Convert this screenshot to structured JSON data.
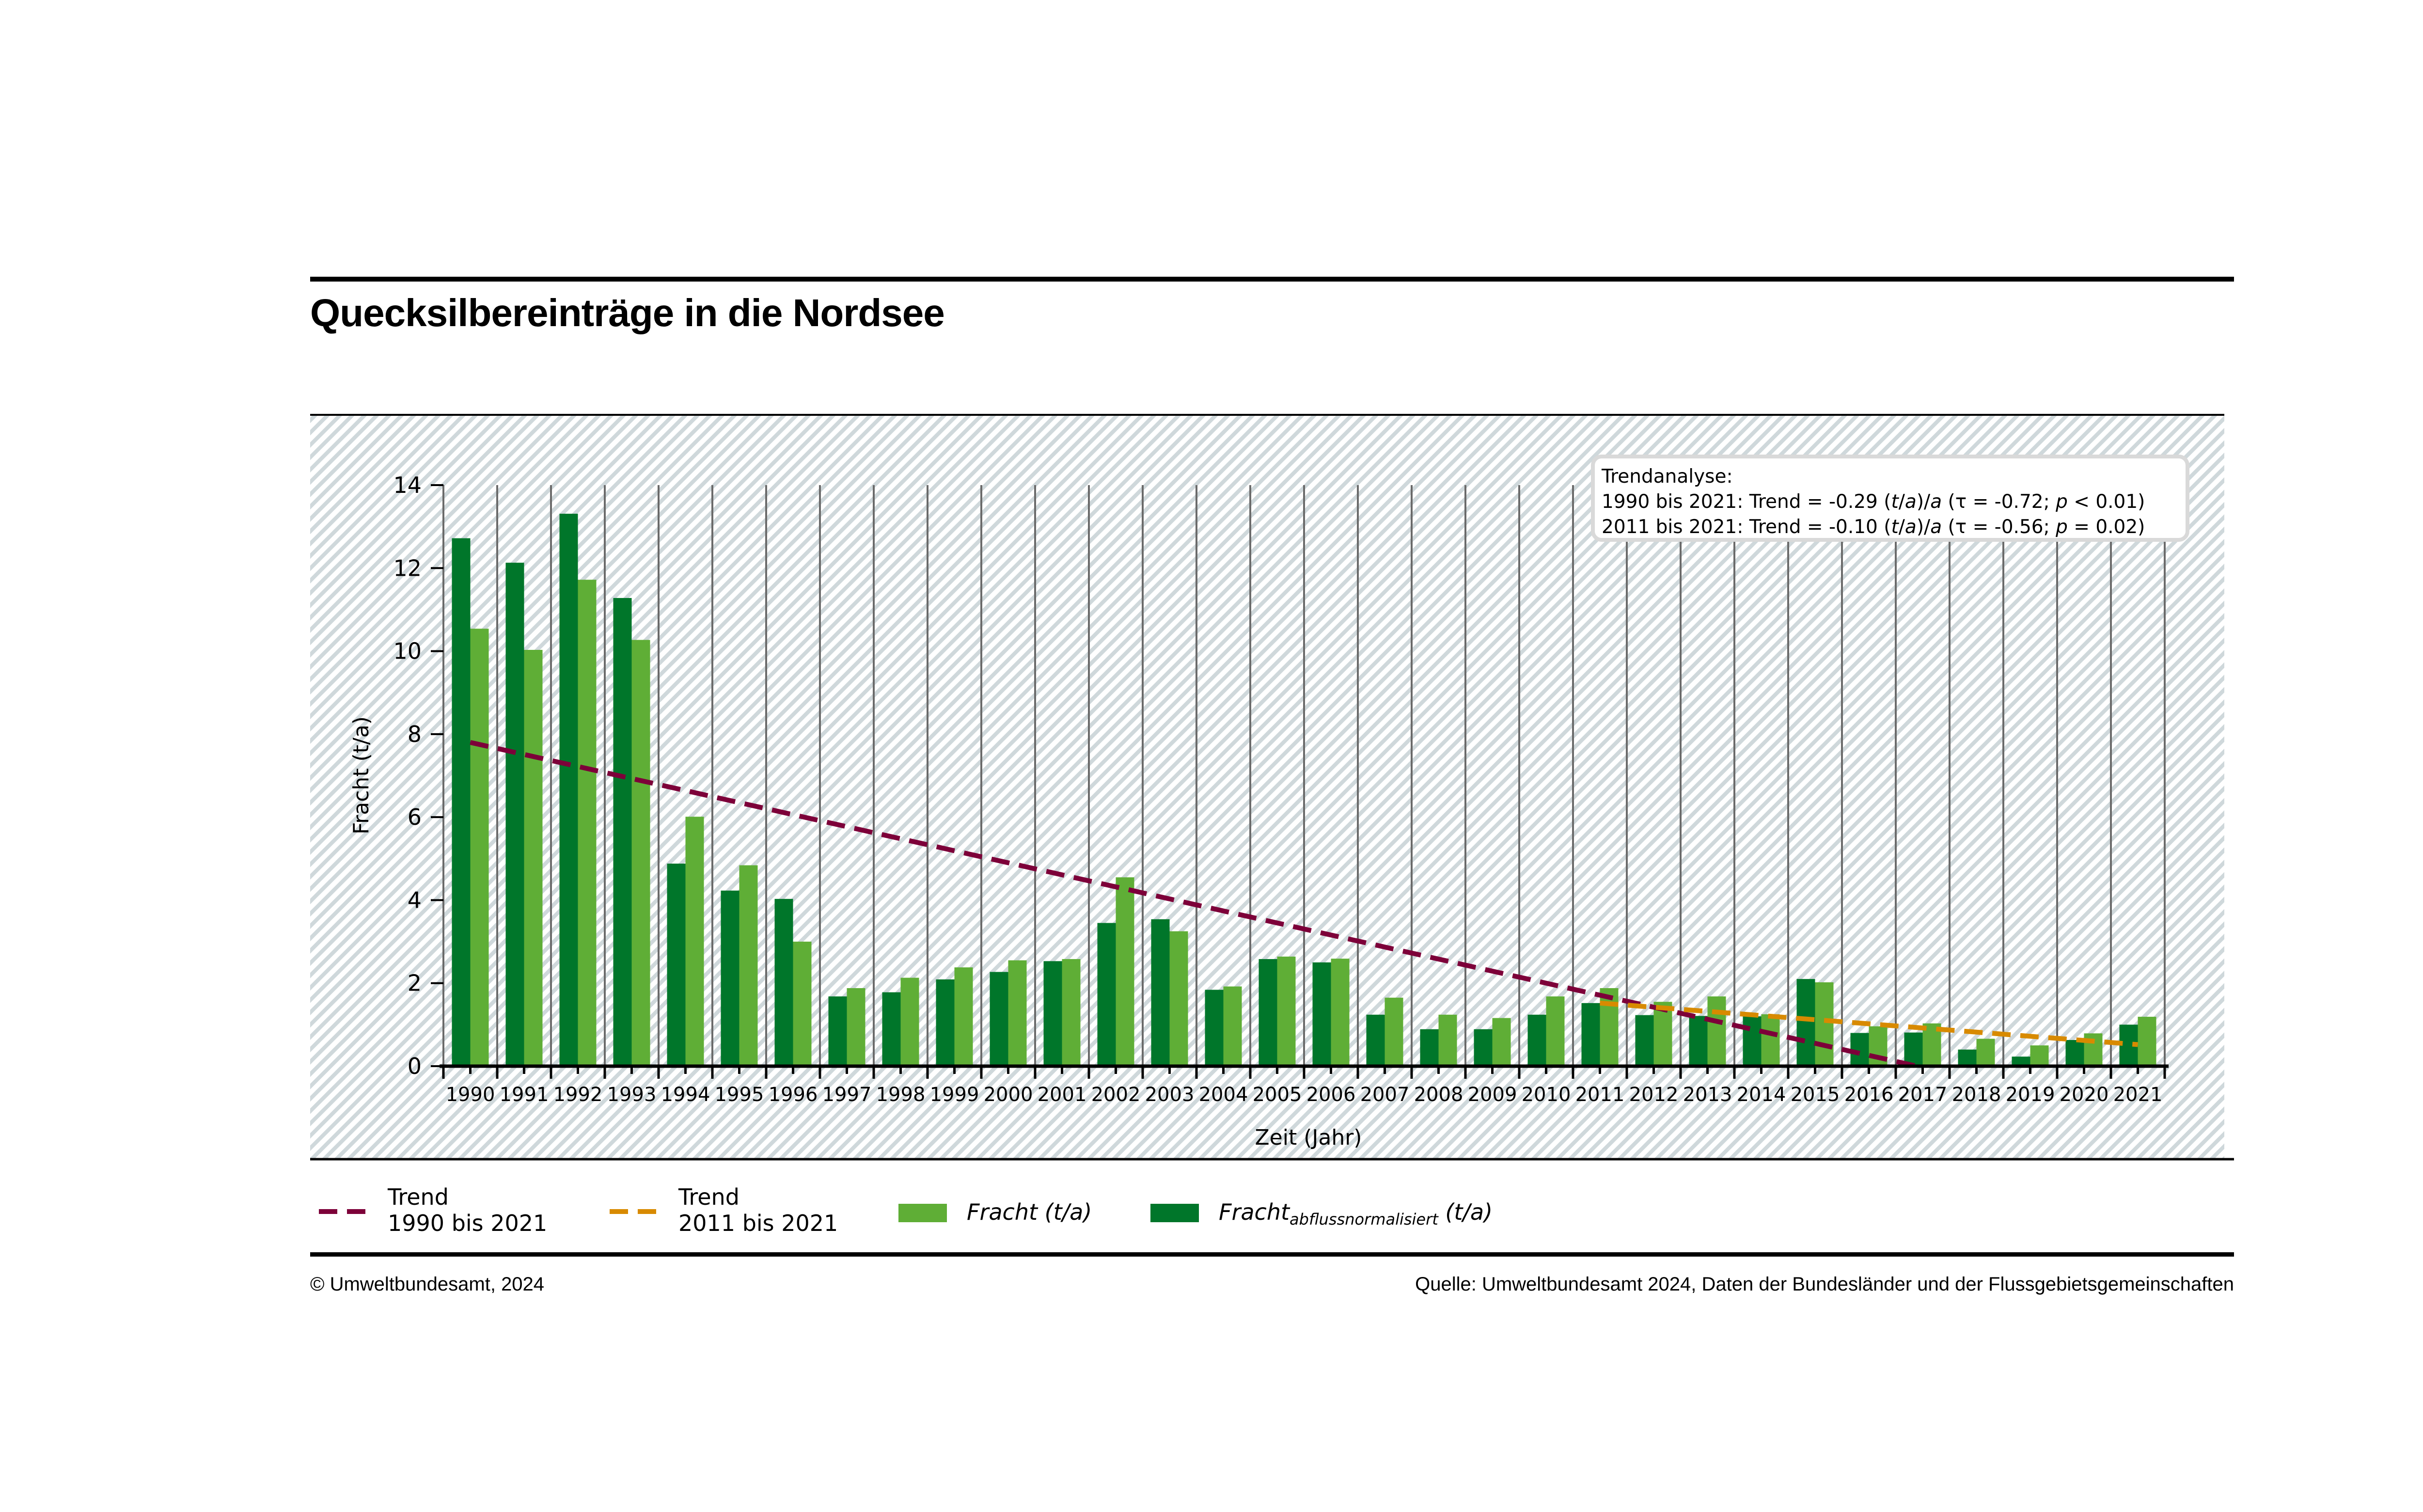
{
  "header": {
    "title": "Quecksilbereinträge in die Nordsee"
  },
  "trend_box": {
    "heading": "Trendanalyse:",
    "line1": {
      "period": "1990 bis 2021: Trend = -0.29 (",
      "unit_t": "t",
      "slash": "/",
      "unit_a": "a",
      "mid": ")/",
      "per": "a",
      "open": " (τ = -0.72; ",
      "p": "p",
      "rest": " < 0.01)"
    },
    "line2": {
      "period": "2011 bis 2021: Trend = -0.10 (",
      "unit_t": "t",
      "slash": "/",
      "unit_a": "a",
      "mid": ")/",
      "per": "a",
      "open": " (τ = -0.56; ",
      "p": "p",
      "rest": " = 0.02)"
    }
  },
  "legend": {
    "trend1": {
      "line1": "Trend",
      "line2": "1990 bis 2021"
    },
    "trend2": {
      "line1": "Trend",
      "line2": "2011 bis 2021"
    },
    "fracht": {
      "main": "Fracht",
      "unit": "(t/a)"
    },
    "fracht_norm": {
      "main": "Fracht",
      "sub": "abflussnormalisiert",
      "unit": "(t/a)"
    }
  },
  "footer": {
    "copyright": "© Umweltbundesamt, 2024",
    "source": "Quelle: Umweltbundesamt 2024, Daten der Bundesländer und der Flussgebietsgemeinschaften"
  },
  "colors": {
    "fracht": "#5fae36",
    "fracht_norm": "#00762a",
    "trend1": "#7d0039",
    "trend2": "#d88a00",
    "hatch": "#cfd8db",
    "grid": "#6b6b6b"
  },
  "chart_data": {
    "type": "bar",
    "title": "Quecksilbereinträge in die Nordsee",
    "xlabel": "Zeit (Jahr)",
    "ylabel": "Fracht (t/a)",
    "ylim": [
      0,
      14
    ],
    "yticks": [
      "0",
      "2",
      "4",
      "6",
      "8",
      "10",
      "12",
      "14"
    ],
    "categories": [
      "1990",
      "1991",
      "1992",
      "1993",
      "1994",
      "1995",
      "1996",
      "1997",
      "1998",
      "1999",
      "2000",
      "2001",
      "2002",
      "2003",
      "2004",
      "2005",
      "2006",
      "2007",
      "2008",
      "2009",
      "2010",
      "2011",
      "2012",
      "2013",
      "2014",
      "2015",
      "2016",
      "2017",
      "2018",
      "2019",
      "2020",
      "2021"
    ],
    "series": [
      {
        "name": "Fracht abflussnormalisiert (t/a)",
        "values": [
          12.72,
          12.13,
          13.31,
          11.28,
          4.88,
          4.23,
          4.03,
          1.68,
          1.78,
          2.09,
          2.27,
          2.53,
          3.45,
          3.54,
          1.84,
          2.58,
          2.5,
          1.24,
          0.89,
          0.89,
          1.24,
          1.52,
          1.23,
          1.21,
          1.2,
          2.1,
          0.8,
          0.81,
          0.4,
          0.23,
          0.63,
          1.0
        ]
      },
      {
        "name": "Fracht (t/a)",
        "values": [
          10.54,
          10.03,
          11.72,
          10.27,
          6.01,
          4.84,
          3.0,
          1.88,
          2.13,
          2.38,
          2.55,
          2.58,
          4.55,
          3.25,
          1.92,
          2.64,
          2.59,
          1.65,
          1.24,
          1.16,
          1.68,
          1.88,
          1.55,
          1.68,
          1.25,
          2.02,
          0.96,
          1.03,
          0.66,
          0.5,
          0.79,
          1.19
        ]
      }
    ],
    "trends": [
      {
        "name": "Trend 1990 bis 2021",
        "x_start": 1990,
        "y_start": 7.8,
        "slope": -0.29,
        "x_end": 2016.9
      },
      {
        "name": "Trend 2011 bis 2021",
        "x_start": 2011,
        "y_start": 1.52,
        "slope": -0.1,
        "x_end": 2021
      }
    ],
    "grid": "vertical",
    "legend_position": "bottom"
  }
}
